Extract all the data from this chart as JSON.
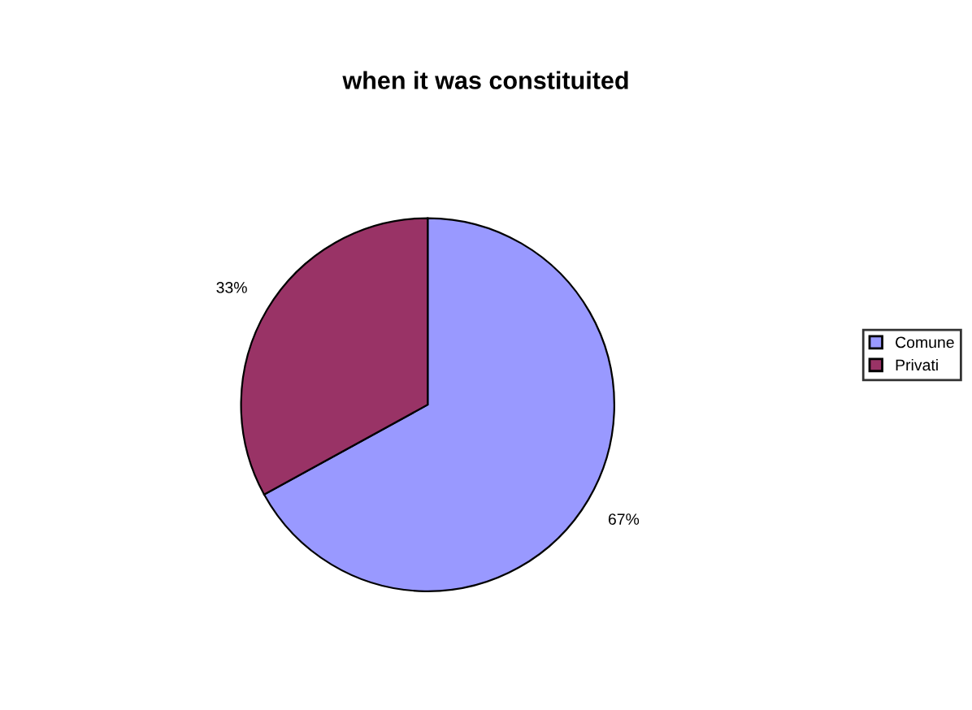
{
  "chart_data": {
    "type": "pie",
    "title": "when it was constituited",
    "categories": [
      "Comune",
      "Privati"
    ],
    "values": [
      67,
      33
    ],
    "colors": [
      "#9999ff",
      "#993366"
    ],
    "value_labels": [
      "67%",
      "33%"
    ],
    "legend": "right"
  }
}
